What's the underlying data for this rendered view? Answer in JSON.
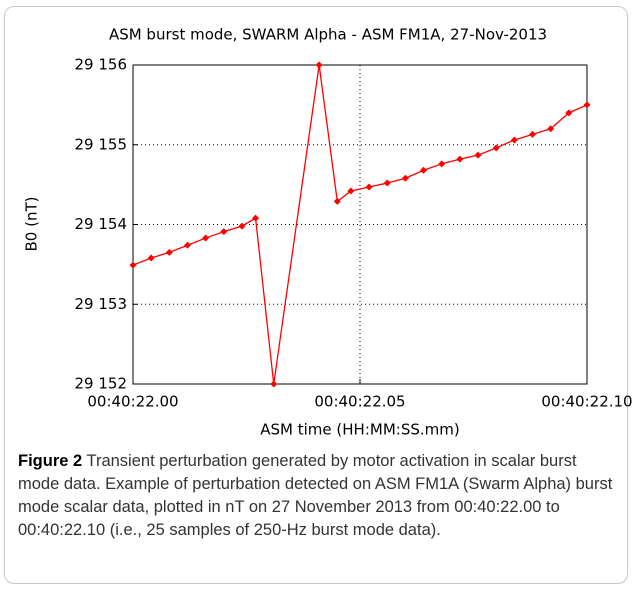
{
  "chart_data": {
    "type": "line",
    "title": "ASM burst mode, SWARM Alpha - ASM FM1A, 27-Nov-2013",
    "x_label": "ASM time (HH:MM:SS.mm)",
    "y_label": "B0 (nT)",
    "x": [
      22.0,
      22.004,
      22.008,
      22.012,
      22.016,
      22.02,
      22.024,
      22.027,
      22.031,
      22.041,
      22.045,
      22.048,
      22.052,
      22.056,
      22.06,
      22.064,
      22.068,
      22.072,
      22.076,
      22.08,
      22.084,
      22.088,
      22.092,
      22.096,
      22.1
    ],
    "series": [
      {
        "color": "#ff0000",
        "values": [
          29153.49,
          29153.58,
          29153.65,
          29153.74,
          29153.83,
          29153.91,
          29153.98,
          29154.08,
          29152.0,
          29156.0,
          29154.29,
          29154.42,
          29154.47,
          29154.52,
          29154.58,
          29154.68,
          29154.76,
          29154.82,
          29154.87,
          29154.96,
          29155.06,
          29155.13,
          29155.2,
          29155.4,
          29155.5
        ]
      }
    ],
    "xlim": [
      22.0,
      22.1
    ],
    "xticks": [
      {
        "value": 22.0,
        "label": "00:40:22.00"
      },
      {
        "value": 22.05,
        "label": "00:40:22.05"
      },
      {
        "value": 22.1,
        "label": "00:40:22.10"
      }
    ],
    "ylim": [
      29152,
      29156
    ],
    "yticks": [
      {
        "value": 29152,
        "label": "29 152"
      },
      {
        "value": 29153,
        "label": "29 153"
      },
      {
        "value": 29154,
        "label": "29 154"
      },
      {
        "value": 29155,
        "label": "29 155"
      },
      {
        "value": 29156,
        "label": "29 156"
      }
    ],
    "grid": true
  },
  "caption": {
    "label": "Figure 2",
    "text": "Transient perturbation generated by motor activation in scalar burst mode data. Example of perturbation detected on ASM FM1A (Swarm Alpha) burst mode scalar data, plotted in nT on 27 November 2013 from 00:40:22.00 to 00:40:22.10 (i.e., 25 samples of 250-Hz burst mode data)."
  }
}
